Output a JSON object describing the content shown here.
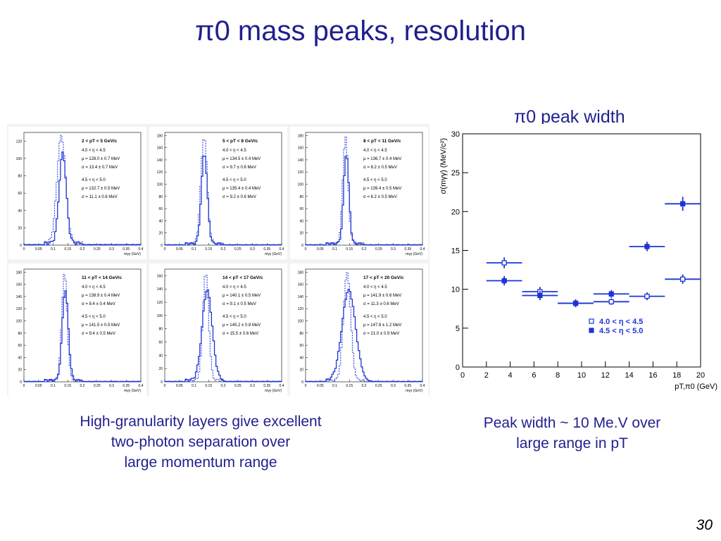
{
  "slide": {
    "title": "π0 mass peaks, resolution",
    "subtitle": "π0 peak width",
    "caption_left": [
      "High-granularity layers give excellent",
      "two-photon separation over",
      "large momentum range"
    ],
    "caption_right": [
      "Peak width ~ 10 Me.V over",
      "large range in pT"
    ],
    "page_number": "30"
  },
  "colors": {
    "text": "#1f1f8f",
    "plot": "#1d34d6"
  },
  "chart_data": [
    {
      "type": "histogram-panels",
      "xlabel": "mγγ (GeV)",
      "xticks": [
        "0",
        "0.05",
        "0.1",
        "0.15",
        "0.2",
        "0.25",
        "0.3",
        "0.35",
        "0.4"
      ],
      "xlim": [
        0,
        0.4
      ],
      "panels": [
        {
          "pt": "2 < pT < 5 GeV/c",
          "yticks": [
            0,
            20,
            40,
            60,
            80,
            100,
            120
          ],
          "ymax": 130,
          "peaks": [
            0.128,
            0.1327
          ],
          "sigmas": [
            0.0134,
            0.0111
          ],
          "lines": [
            "4.0 < η < 4.5",
            "μ = 128.0 ± 0.7 MeV",
            "σ = 13.4 ± 0.7 MeV",
            "4.5 < η < 5.0",
            "μ = 132.7 ± 0.5 MeV",
            "σ = 11.1 ± 0.6 MeV"
          ]
        },
        {
          "pt": "5 < pT < 8 GeV/c",
          "yticks": [
            0,
            20,
            40,
            60,
            80,
            100,
            120,
            140,
            160,
            180
          ],
          "ymax": 185,
          "peaks": [
            0.1345,
            0.1354
          ],
          "sigmas": [
            0.0097,
            0.0092
          ],
          "lines": [
            "4.0 < η < 4.5",
            "μ = 134.5 ± 0.4 MeV",
            "σ = 9.7 ± 0.6 MeV",
            "4.5 < η < 5.0",
            "μ = 135.4 ± 0.4 MeV",
            "σ = 9.2 ± 0.6 MeV"
          ]
        },
        {
          "pt": "8 < pT < 11 GeV/c",
          "yticks": [
            0,
            20,
            40,
            60,
            80,
            100,
            120,
            140,
            160,
            180
          ],
          "ymax": 185,
          "peaks": [
            0.1367,
            0.1394
          ],
          "sigmas": [
            0.0082,
            0.0082
          ],
          "lines": [
            "4.0 < η < 4.5",
            "μ = 136.7 ± 0.4 MeV",
            "σ = 8.2 ± 0.5 MeV",
            "4.5 < η < 5.0",
            "μ = 139.4 ± 0.5 MeV",
            "σ = 8.2 ± 0.5 MeV"
          ]
        },
        {
          "pt": "11 < pT < 14 GeV/c",
          "yticks": [
            0,
            20,
            40,
            60,
            80,
            100,
            120,
            140,
            160,
            180
          ],
          "ymax": 185,
          "peaks": [
            0.1389,
            0.1415
          ],
          "sigmas": [
            0.0084,
            0.0094
          ],
          "lines": [
            "4.0 < η < 4.5",
            "μ = 138.9 ± 0.4 MeV",
            "σ = 8.4 ± 0.4 MeV",
            "4.5 < η < 5.0",
            "μ = 141.5 ± 0.5 MeV",
            "σ = 9.4 ± 0.5 MeV"
          ]
        },
        {
          "pt": "14 < pT < 17 GeV/c",
          "yticks": [
            0,
            20,
            40,
            60,
            80,
            100,
            120,
            140,
            160
          ],
          "ymax": 170,
          "peaks": [
            0.1401,
            0.1452
          ],
          "sigmas": [
            0.0091,
            0.0155
          ],
          "lines": [
            "4.0 < η < 4.5",
            "μ = 140.1 ± 0.5 MeV",
            "σ = 9.1 ± 0.5 MeV",
            "4.5 < η < 5.0",
            "μ = 145.2 ± 0.8 MeV",
            "σ = 15.5 ± 0.6 MeV"
          ]
        },
        {
          "pt": "17 < pT < 20 GeV/c",
          "yticks": [
            0,
            20,
            40,
            60,
            80,
            100,
            120,
            140,
            160,
            180
          ],
          "ymax": 185,
          "peaks": [
            0.1419,
            0.1478
          ],
          "sigmas": [
            0.0113,
            0.021
          ],
          "lines": [
            "4.0 < η < 4.5",
            "μ = 141.9 ± 0.6 MeV",
            "σ = 11.3 ± 0.6 MeV",
            "4.5 < η < 5.0",
            "μ = 147.8 ± 1.2 MeV",
            "σ = 21.0 ± 0.9 MeV"
          ]
        }
      ]
    },
    {
      "type": "scatter",
      "xlabel": "pT,π0 (GeV)",
      "ylabel": "σ(mγγ) (MeV/c²)",
      "xlim": [
        0,
        20
      ],
      "ylim": [
        0,
        30
      ],
      "xticks": [
        0,
        2,
        4,
        6,
        8,
        10,
        12,
        14,
        16,
        18,
        20
      ],
      "yticks": [
        0,
        5,
        10,
        15,
        20,
        25,
        30
      ],
      "series": [
        {
          "name": "4.0 < η < 4.5",
          "marker": "open-square",
          "points": [
            {
              "x": 3.5,
              "xerr": 1.5,
              "y": 13.4,
              "yerr": 0.7
            },
            {
              "x": 6.5,
              "xerr": 1.5,
              "y": 9.7,
              "yerr": 0.6
            },
            {
              "x": 9.5,
              "xerr": 1.5,
              "y": 8.2,
              "yerr": 0.5
            },
            {
              "x": 12.5,
              "xerr": 1.5,
              "y": 8.4,
              "yerr": 0.4
            },
            {
              "x": 15.5,
              "xerr": 1.5,
              "y": 9.1,
              "yerr": 0.5
            },
            {
              "x": 18.5,
              "xerr": 1.5,
              "y": 11.3,
              "yerr": 0.6
            }
          ]
        },
        {
          "name": "4.5 < η < 5.0",
          "marker": "filled-square",
          "points": [
            {
              "x": 3.5,
              "xerr": 1.5,
              "y": 11.1,
              "yerr": 0.6
            },
            {
              "x": 6.5,
              "xerr": 1.5,
              "y": 9.2,
              "yerr": 0.6
            },
            {
              "x": 9.5,
              "xerr": 1.5,
              "y": 8.2,
              "yerr": 0.5
            },
            {
              "x": 12.5,
              "xerr": 1.5,
              "y": 9.4,
              "yerr": 0.5
            },
            {
              "x": 15.5,
              "xerr": 1.5,
              "y": 15.5,
              "yerr": 0.6
            },
            {
              "x": 18.5,
              "xerr": 1.5,
              "y": 21.0,
              "yerr": 0.9
            }
          ]
        }
      ],
      "legend": "bottom-right"
    }
  ]
}
